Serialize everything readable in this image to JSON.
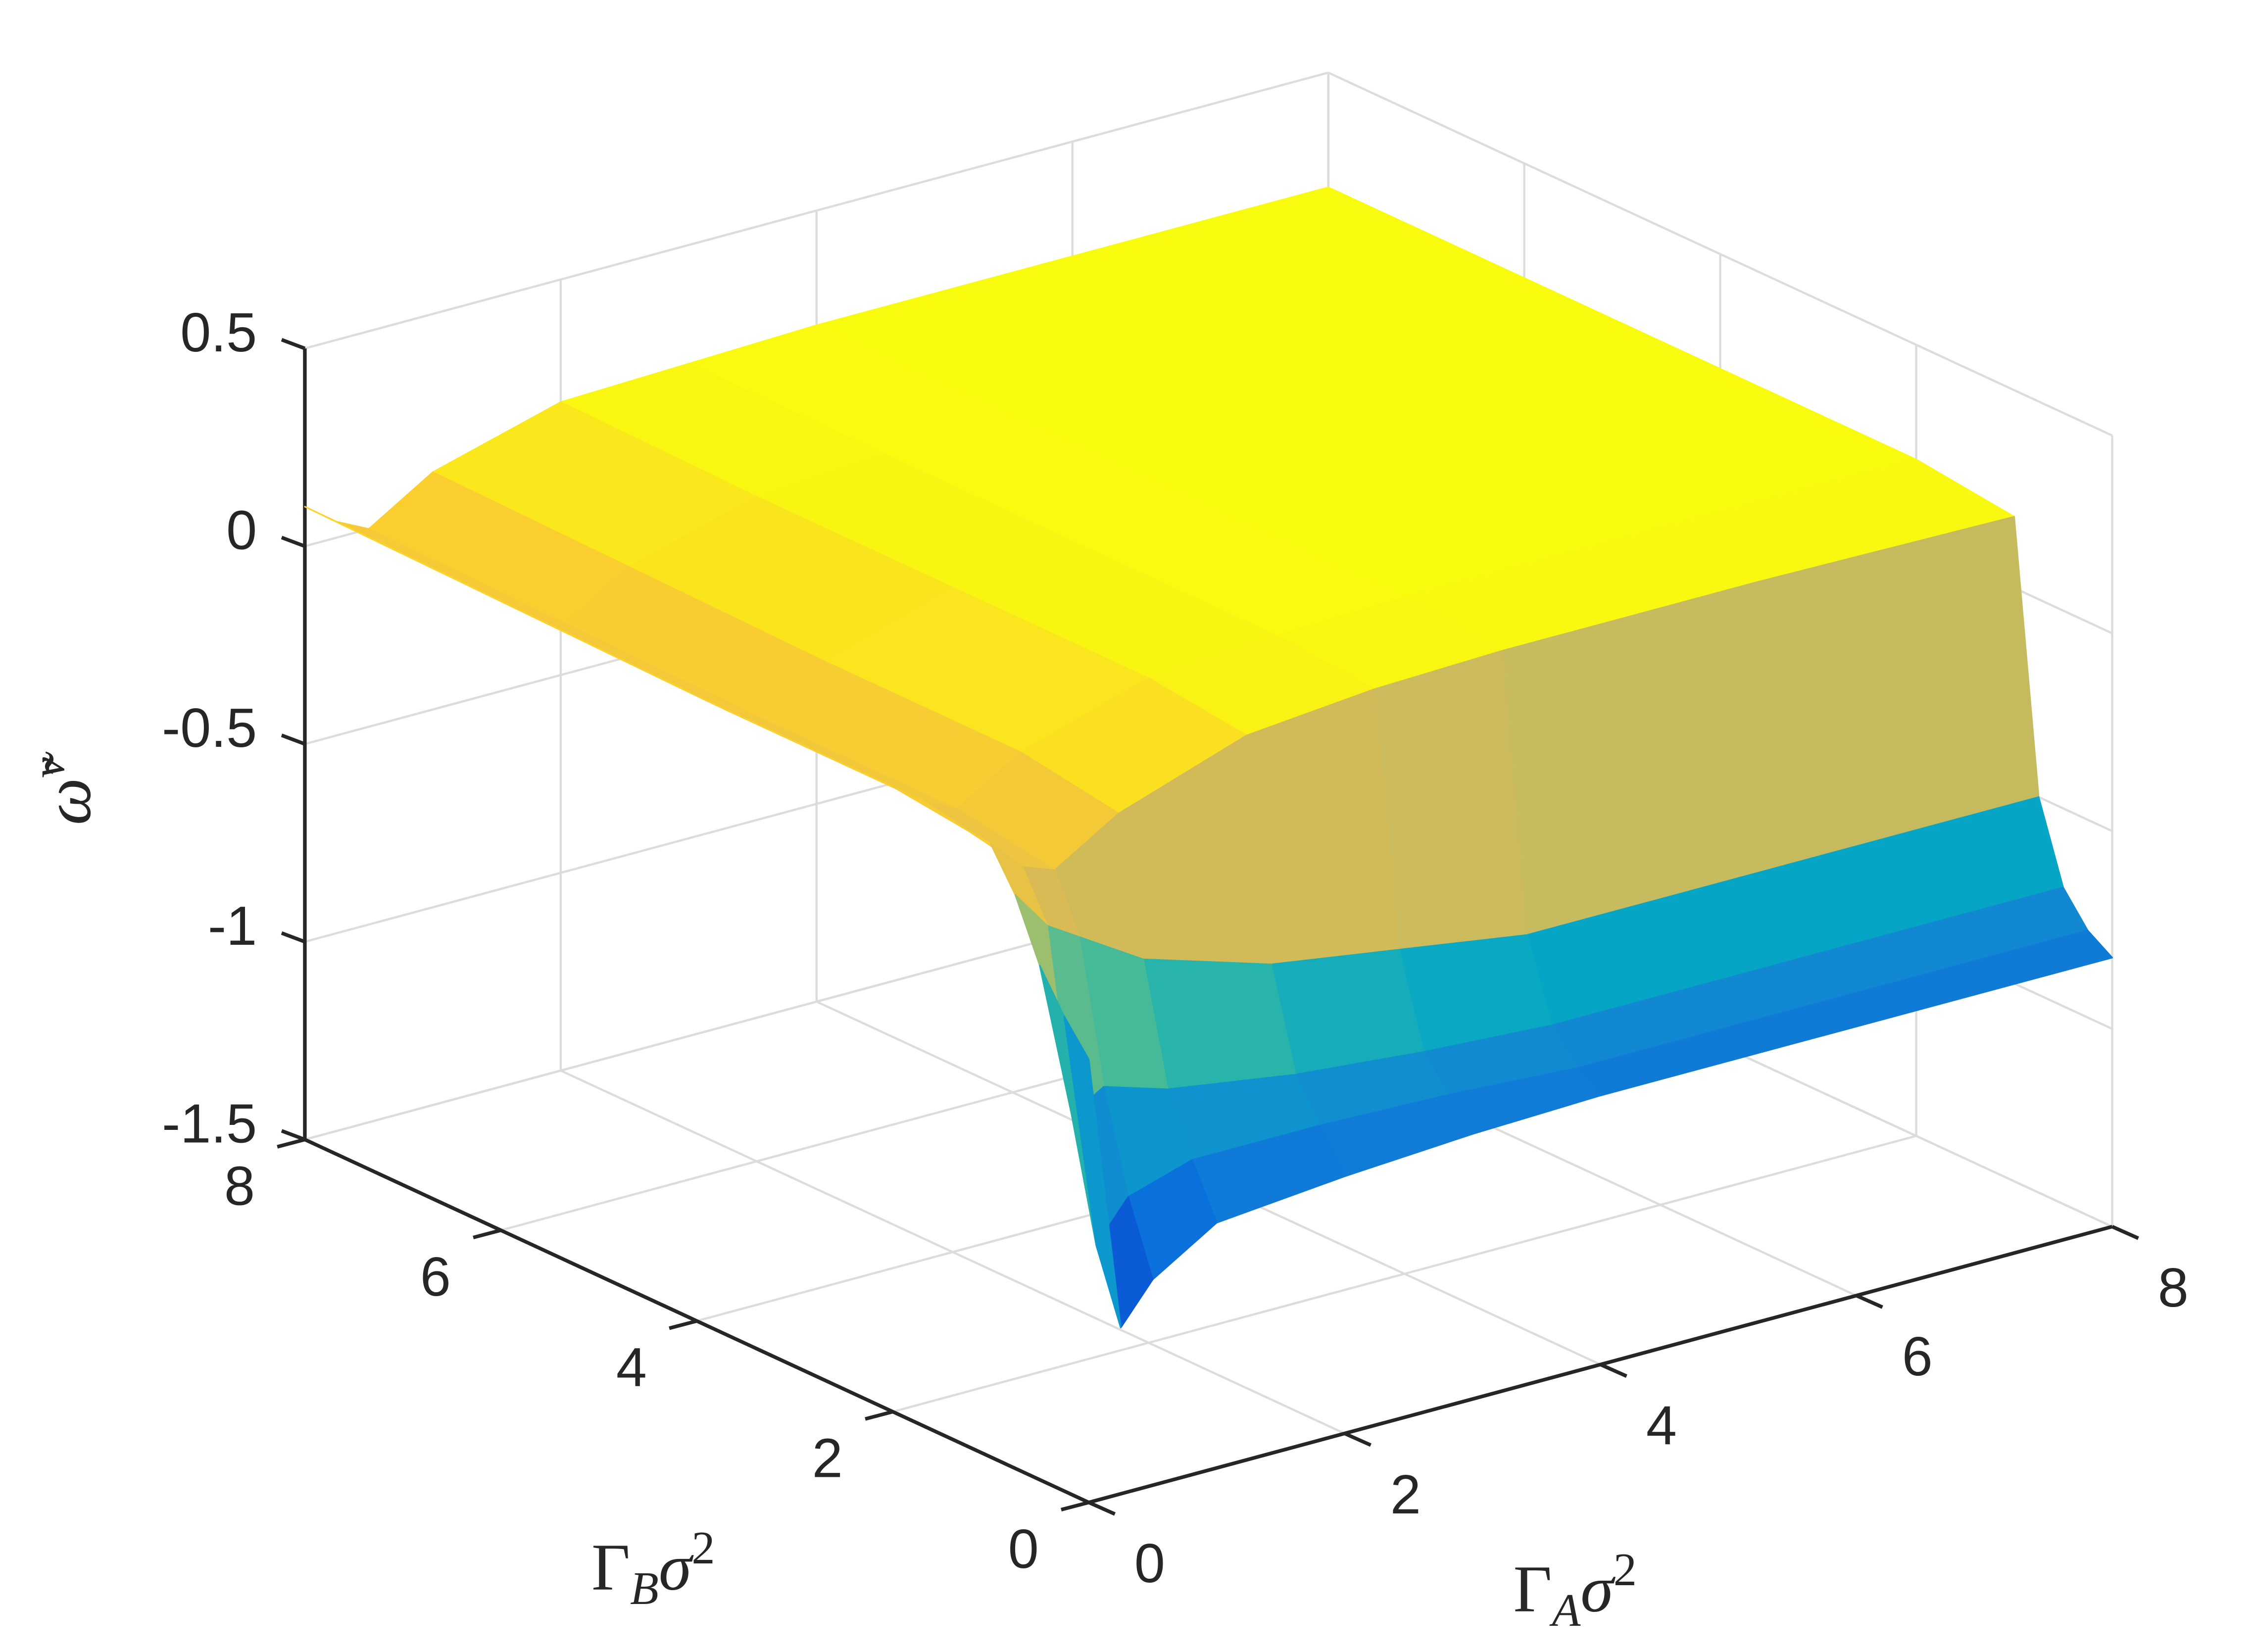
{
  "chart_data": {
    "type": "surface",
    "x": [
      0,
      0.25,
      0.5,
      1,
      2,
      3,
      4,
      6,
      8
    ],
    "y": [
      0,
      0.25,
      0.5,
      0.75,
      1,
      2,
      4,
      6,
      8
    ],
    "z": [
      [
        -0.38,
        -1.08,
        -0.98,
        -0.88,
        -0.85,
        -0.83,
        -0.82,
        -0.82,
        -0.82
      ],
      [
        -0.3,
        -0.9,
        -0.8,
        -0.75,
        -0.75,
        -0.76,
        -0.78,
        -0.78,
        -0.78
      ],
      [
        -0.2,
        -0.6,
        -0.55,
        -0.6,
        -0.65,
        -0.68,
        -0.7,
        -0.7,
        -0.7
      ],
      [
        -0.05,
        -0.15,
        -0.2,
        -0.3,
        -0.4,
        -0.45,
        -0.5,
        -0.5,
        -0.5
      ],
      [
        0.05,
        -0.03,
        -0.06,
        0.04,
        0.15,
        0.18,
        0.19,
        0.19,
        0.18
      ],
      [
        0.08,
        0.02,
        -0.02,
        0.08,
        0.18,
        0.2,
        0.21,
        0.21,
        0.21
      ],
      [
        0.08,
        0.02,
        -0.02,
        0.08,
        0.18,
        0.2,
        0.21,
        0.21,
        0.21
      ],
      [
        0.09,
        0.03,
        -0.01,
        0.09,
        0.18,
        0.2,
        0.21,
        0.21,
        0.21
      ],
      [
        0.1,
        0.04,
        0.0,
        0.1,
        0.19,
        0.2,
        0.21,
        0.21,
        0.21
      ]
    ],
    "colormap": "parula",
    "xlabel": "Γ_Aσ^2",
    "ylabel": "Γ_Bσ^2",
    "zlabel": "ω̃^v",
    "xlim": [
      0,
      8
    ],
    "ylim": [
      0,
      8
    ],
    "zlim": [
      -1.5,
      0.5
    ],
    "xticks": [
      0,
      2,
      4,
      6,
      8
    ],
    "yticks": [
      0,
      2,
      4,
      6,
      8
    ],
    "zticks": [
      -1.5,
      -1,
      -0.5,
      0,
      0.5
    ],
    "grid": true
  }
}
